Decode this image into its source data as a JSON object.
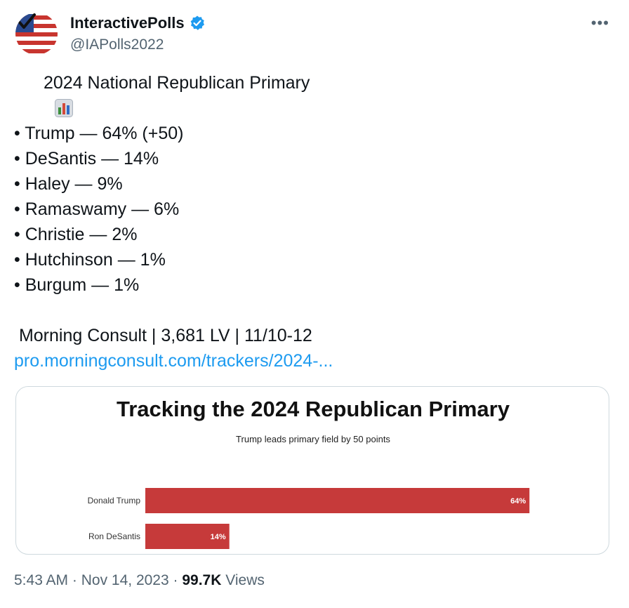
{
  "author": {
    "display_name": "InteractivePolls",
    "handle": "@IAPolls2022",
    "verified": true,
    "avatar_icon": "us-flag-checkmark-icon"
  },
  "more_label": "•••",
  "post": {
    "title_icon": "bar-chart-emoji",
    "title": "2024 National Republican Primary",
    "results": [
      "• Trump — 64% (+50)",
      "• DeSantis — 14%",
      "• Haley — 9%",
      "• Ramaswamy — 6%",
      "• Christie — 2%",
      "• Hutchinson — 1%",
      "• Burgum — 1%"
    ],
    "source": " Morning Consult | 3,681 LV | 11/10-12",
    "link": "pro.morningconsult.com/trackers/2024-..."
  },
  "card": {
    "chart_data": {
      "type": "bar",
      "orientation": "horizontal",
      "title": "Tracking the 2024 Republican Primary",
      "subtitle": "Trump leads primary field by 50 points",
      "categories": [
        "Donald Trump",
        "Ron DeSantis"
      ],
      "values": [
        64,
        14
      ],
      "value_labels": [
        "64%",
        "14%"
      ],
      "bar_color": "#c63a3a",
      "xlim": [
        0,
        100
      ],
      "grid": false,
      "legend": "none"
    }
  },
  "footer": {
    "time": "5:43 AM",
    "date": "Nov 14, 2023",
    "views_count": "99.7K",
    "views_label": "Views"
  },
  "colors": {
    "text": "#0f1419",
    "secondary": "#536471",
    "link": "#1d9bf0",
    "verified": "#1d9bf0",
    "border": "#cfd9de"
  }
}
